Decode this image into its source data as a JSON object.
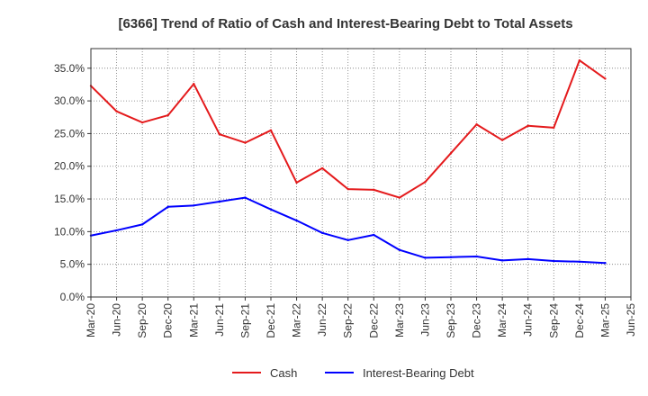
{
  "chart_data": {
    "type": "line",
    "title": "[6366]  Trend of Ratio of Cash and Interest-Bearing Debt to Total Assets",
    "xlabel": "",
    "ylabel": "",
    "x": [
      "Mar-20",
      "Jun-20",
      "Sep-20",
      "Dec-20",
      "Mar-21",
      "Jun-21",
      "Sep-21",
      "Dec-21",
      "Mar-22",
      "Jun-22",
      "Sep-22",
      "Dec-22",
      "Mar-23",
      "Jun-23",
      "Sep-23",
      "Dec-23",
      "Mar-24",
      "Jun-24",
      "Sep-24",
      "Dec-24",
      "Mar-25",
      "Jun-25"
    ],
    "ylim": [
      0,
      38
    ],
    "yticks": [
      0,
      5,
      10,
      15,
      20,
      25,
      30,
      35
    ],
    "ytick_labels": [
      "0.0%",
      "5.0%",
      "10.0%",
      "15.0%",
      "20.0%",
      "25.0%",
      "30.0%",
      "35.0%"
    ],
    "grid": true,
    "legend_position": "bottom-center",
    "series": [
      {
        "name": "Cash",
        "color": "#e41a1c",
        "values": [
          32.3,
          28.4,
          26.7,
          27.8,
          32.6,
          24.9,
          23.6,
          25.5,
          17.5,
          19.7,
          16.5,
          16.4,
          15.2,
          17.6,
          22.0,
          26.4,
          24.0,
          26.2,
          25.9,
          36.2,
          33.4,
          null
        ]
      },
      {
        "name": "Interest-Bearing Debt",
        "color": "#0000ff",
        "values": [
          9.4,
          10.2,
          11.1,
          13.8,
          14.0,
          14.6,
          15.2,
          13.4,
          11.7,
          9.8,
          8.7,
          9.5,
          7.2,
          6.0,
          6.1,
          6.2,
          5.6,
          5.8,
          5.5,
          5.4,
          5.2,
          null
        ]
      }
    ]
  }
}
